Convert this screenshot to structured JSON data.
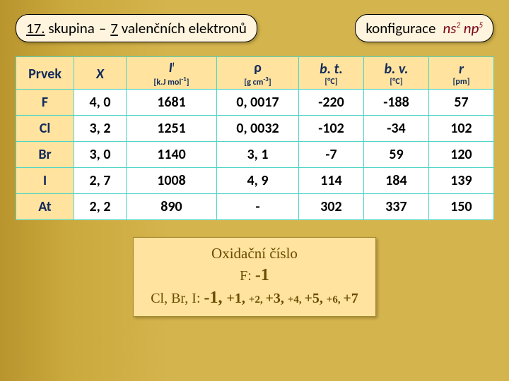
{
  "title": {
    "group_no": "17.",
    "word_skupina": "skupina",
    "dash": "–",
    "seven": "7",
    "rest": "valenčních elektronů"
  },
  "config": {
    "label": "konfigurace",
    "n1": "n",
    "s": "s",
    "exp1": "2",
    "n2": "n",
    "p": "p",
    "exp2": "5"
  },
  "table": {
    "head": {
      "prvek": "Prvek",
      "chi": "X",
      "I_main": "I",
      "I_sup": "I",
      "I_unit_pre": "[k.J mol",
      "I_unit_sup": "-1",
      "I_unit_post": "]",
      "rho": "ρ",
      "rho_unit_pre": "[g cm",
      "rho_unit_sup": "-3",
      "rho_unit_post": "]",
      "bt": "b. t.",
      "bt_unit": "[°C]",
      "bv": "b. v.",
      "bv_unit": "[°C]",
      "r": "r",
      "r_unit": "[pm]"
    },
    "rows": [
      {
        "el": "F",
        "x": "4, 0",
        "I": "1681",
        "rho": "0, 0017",
        "bt": "-220",
        "bv": "-188",
        "r": "57"
      },
      {
        "el": "Cl",
        "x": "3, 2",
        "I": "1251",
        "rho": "0, 0032",
        "bt": "-102",
        "bv": "-34",
        "r": "102"
      },
      {
        "el": "Br",
        "x": "3, 0",
        "I": "1140",
        "rho": "3, 1",
        "bt": "-7",
        "bv": "59",
        "r": "120"
      },
      {
        "el": "I",
        "x": "2, 7",
        "I": "1008",
        "rho": "4, 9",
        "bt": "114",
        "bv": "184",
        "r": "139"
      },
      {
        "el": "At",
        "x": "2, 2",
        "I": "890",
        "rho": "-",
        "bt": "302",
        "bv": "337",
        "r": "150"
      }
    ]
  },
  "ox": {
    "line1": "Oxidační číslo",
    "line2_pre": "F:  ",
    "line2_val": "-1",
    "line3_pre": "Cl, Br, I: ",
    "line3_big": "-1, ",
    "seq": [
      {
        "t": "+1, ",
        "cls": "mid"
      },
      {
        "t": "+2, ",
        "cls": "sm"
      },
      {
        "t": "+3, ",
        "cls": "mid"
      },
      {
        "t": "+4, ",
        "cls": "sm"
      },
      {
        "t": "+5, ",
        "cls": "mid"
      },
      {
        "t": "+6, ",
        "cls": "sm"
      },
      {
        "t": "+7",
        "cls": "mid"
      }
    ]
  },
  "colors": {
    "header_bg": "#ffe39e",
    "header_fg": "#132a5c",
    "cell_bg": "#ffffff",
    "border": "#4fd4c6",
    "page_bg": "#d4b44c",
    "formula": "#7a0019",
    "ox_fg": "#6a4d00"
  }
}
